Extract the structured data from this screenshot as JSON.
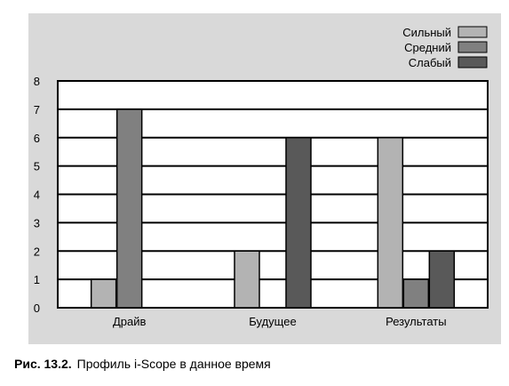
{
  "chart_data": {
    "type": "bar",
    "categories": [
      "Драйв",
      "Будущее",
      "Результаты"
    ],
    "series": [
      {
        "name": "Сильный",
        "values": [
          1,
          2,
          6
        ],
        "color": "#b3b3b3",
        "pattern": "solid"
      },
      {
        "name": "Средний",
        "values": [
          7,
          0,
          1
        ],
        "color": "#808080",
        "pattern": "dots"
      },
      {
        "name": "Слабый",
        "values": [
          0,
          6,
          2
        ],
        "color": "#595959",
        "pattern": "solid"
      }
    ],
    "ylim": [
      0,
      8
    ],
    "yticks": [
      0,
      1,
      2,
      3,
      4,
      5,
      6,
      7,
      8
    ],
    "grid": true,
    "legend": "top-right",
    "background": "#d9d9d9",
    "plot_background": "#ffffff"
  },
  "caption": {
    "number": "Рис. 13.2.",
    "text": "Профиль i-Scope в данное время"
  }
}
